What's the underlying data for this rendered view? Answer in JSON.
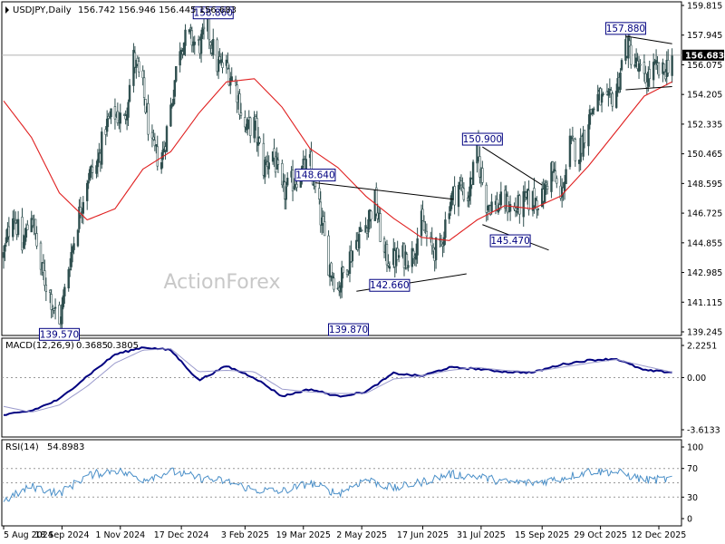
{
  "chart_data": [
    {
      "type": "candlestick",
      "header": {
        "symbol": "USDJPY,Daily",
        "ohlc_text": "156.742 156.946 156.445 156.683"
      },
      "watermark": "ActionForex",
      "current_price": 156.683,
      "ylim": [
        139.245,
        159.815
      ],
      "y_ticks": [
        159.815,
        157.945,
        156.075,
        154.205,
        152.335,
        150.465,
        148.595,
        146.725,
        144.855,
        142.985,
        141.115,
        139.245
      ],
      "x_ticks": [
        "5 Aug 2024",
        "18 Sep 2024",
        "1 Nov 2024",
        "17 Dec 2024",
        "3 Feb 2025",
        "19 Mar 2025",
        "2 May 2025",
        "17 Jun 2025",
        "31 Jul 2025",
        "15 Sep 2025",
        "29 Oct 2025",
        "12 Dec 2025"
      ],
      "price_path": [
        [
          "5 Aug 2024",
          144.0
        ],
        [
          "12 Aug 2024",
          147.0
        ],
        [
          "19 Aug 2024",
          144.5
        ],
        [
          "26 Aug 2024",
          146.8
        ],
        [
          "2 Sep 2024",
          143.2
        ],
        [
          "9 Sep 2024",
          141.6
        ],
        [
          "16 Sep 2024",
          139.6
        ],
        [
          "23 Sep 2024",
          143.4
        ],
        [
          "30 Sep 2024",
          146.3
        ],
        [
          "7 Oct 2024",
          149.0
        ],
        [
          "14 Oct 2024",
          149.6
        ],
        [
          "21 Oct 2024",
          152.2
        ],
        [
          "28 Oct 2024",
          153.0
        ],
        [
          "4 Nov 2024",
          152.5
        ],
        [
          "11 Nov 2024",
          156.5
        ],
        [
          "18 Nov 2024",
          154.5
        ],
        [
          "25 Nov 2024",
          150.7
        ],
        [
          "2 Dec 2024",
          150.0
        ],
        [
          "9 Dec 2024",
          153.4
        ],
        [
          "16 Dec 2024",
          157.4
        ],
        [
          "23 Dec 2024",
          157.8
        ],
        [
          "30 Dec 2024",
          157.2
        ],
        [
          "6 Jan 2025",
          158.3
        ],
        [
          "13 Jan 2025",
          156.1
        ],
        [
          "20 Jan 2025",
          155.9
        ],
        [
          "27 Jan 2025",
          154.8
        ],
        [
          "3 Feb 2025",
          152.0
        ],
        [
          "10 Feb 2025",
          152.3
        ],
        [
          "17 Feb 2025",
          149.6
        ],
        [
          "24 Feb 2025",
          150.6
        ],
        [
          "3 Mar 2025",
          147.9
        ],
        [
          "10 Mar 2025",
          148.6
        ],
        [
          "17 Mar 2025",
          149.3
        ],
        [
          "24 Mar 2025",
          149.8
        ],
        [
          "31 Mar 2025",
          146.9
        ],
        [
          "7 Apr 2025",
          143.6
        ],
        [
          "14 Apr 2025",
          142.0
        ],
        [
          "21 Apr 2025",
          143.6
        ],
        [
          "28 Apr 2025",
          145.0
        ],
        [
          "5 May 2025",
          146.0
        ],
        [
          "12 May 2025",
          147.5
        ],
        [
          "19 May 2025",
          144.0
        ],
        [
          "26 May 2025",
          143.8
        ],
        [
          "2 Jun 2025",
          144.0
        ],
        [
          "9 Jun 2025",
          144.1
        ],
        [
          "16 Jun 2025",
          146.1
        ],
        [
          "23 Jun 2025",
          144.5
        ],
        [
          "30 Jun 2025",
          144.4
        ],
        [
          "7 Jul 2025",
          147.4
        ],
        [
          "14 Jul 2025",
          148.5
        ],
        [
          "21 Jul 2025",
          147.7
        ],
        [
          "28 Jul 2025",
          150.5
        ],
        [
          "4 Aug 2025",
          147.4
        ],
        [
          "11 Aug 2025",
          147.2
        ],
        [
          "18 Aug 2025",
          147.4
        ],
        [
          "25 Aug 2025",
          146.9
        ],
        [
          "1 Sep 2025",
          147.4
        ],
        [
          "8 Sep 2025",
          147.6
        ],
        [
          "15 Sep 2025",
          147.6
        ],
        [
          "22 Sep 2025",
          149.6
        ],
        [
          "29 Sep 2025",
          147.5
        ],
        [
          "6 Oct 2025",
          151.0
        ],
        [
          "13 Oct 2025",
          150.6
        ],
        [
          "20 Oct 2025",
          152.8
        ],
        [
          "27 Oct 2025",
          154.0
        ],
        [
          "3 Nov 2025",
          153.5
        ],
        [
          "10 Nov 2025",
          154.5
        ],
        [
          "17 Nov 2025",
          157.4
        ],
        [
          "24 Nov 2025",
          156.2
        ],
        [
          "1 Dec 2025",
          155.0
        ],
        [
          "8 Dec 2025",
          155.8
        ],
        [
          "15 Dec 2025",
          155.5
        ],
        [
          "22 Dec 2025",
          156.7
        ]
      ],
      "moving_average_path": [
        [
          "5 Aug 2024",
          153.8
        ],
        [
          "26 Aug 2024",
          151.5
        ],
        [
          "16 Sep 2024",
          148.0
        ],
        [
          "7 Oct 2024",
          146.3
        ],
        [
          "28 Oct 2024",
          147.0
        ],
        [
          "18 Nov 2024",
          149.5
        ],
        [
          "9 Dec 2024",
          150.6
        ],
        [
          "30 Dec 2024",
          153.0
        ],
        [
          "20 Jan 2025",
          155.0
        ],
        [
          "10 Feb 2025",
          155.2
        ],
        [
          "3 Mar 2025",
          153.4
        ],
        [
          "24 Mar 2025",
          150.8
        ],
        [
          "14 Apr 2025",
          149.6
        ],
        [
          "5 May 2025",
          147.8
        ],
        [
          "26 May 2025",
          146.4
        ],
        [
          "16 Jun 2025",
          145.2
        ],
        [
          "7 Jul 2025",
          145.0
        ],
        [
          "28 Jul 2025",
          146.3
        ],
        [
          "18 Aug 2025",
          147.2
        ],
        [
          "8 Sep 2025",
          147.0
        ],
        [
          "29 Sep 2025",
          147.8
        ],
        [
          "20 Oct 2025",
          149.7
        ],
        [
          "10 Nov 2025",
          151.9
        ],
        [
          "1 Dec 2025",
          154.1
        ],
        [
          "22 Dec 2025",
          155.0
        ]
      ],
      "swing_labels": [
        {
          "text": "139.570",
          "date": "16 Sep 2024",
          "value": 139.57,
          "place": "below"
        },
        {
          "text": "158.860",
          "date": "10 Jan 2025",
          "value": 158.86,
          "place": "above"
        },
        {
          "text": "139.870",
          "date": "22 Apr 2025",
          "value": 139.87,
          "place": "below"
        },
        {
          "text": "148.640",
          "date": "28 Mar 2025",
          "value": 148.64,
          "place": "above"
        },
        {
          "text": "142.660",
          "date": "23 May 2025",
          "value": 142.66,
          "place": "below"
        },
        {
          "text": "150.900",
          "date": "1 Aug 2025",
          "value": 150.9,
          "place": "above"
        },
        {
          "text": "145.470",
          "date": "22 Aug 2025",
          "value": 145.47,
          "place": "below"
        },
        {
          "text": "157.880",
          "date": "17 Nov 2025",
          "value": 157.88,
          "place": "above"
        }
      ],
      "trendlines": [
        [
          [
            "28 Mar 2025",
            148.64
          ],
          [
            "10 Jul 2025",
            147.6
          ]
        ],
        [
          [
            "28 Apr 2025",
            141.8
          ],
          [
            "20 Jul 2025",
            142.9
          ]
        ],
        [
          [
            "1 Aug 2025",
            150.9
          ],
          [
            "15 Sep 2025",
            148.5
          ]
        ],
        [
          [
            "1 Aug 2025",
            146.0
          ],
          [
            "20 Sep 2025",
            144.4
          ]
        ],
        [
          [
            "17 Nov 2025",
            157.88
          ],
          [
            "22 Dec 2025",
            157.4
          ]
        ],
        [
          [
            "17 Nov 2025",
            154.5
          ],
          [
            "22 Dec 2025",
            154.7
          ]
        ]
      ]
    },
    {
      "type": "line",
      "header": {
        "label": "MACD(12,26,9)",
        "value1": "0.3685",
        "value2": "0.3805"
      },
      "ylim": [
        -3.6133,
        2.2251
      ],
      "y_ticks": [
        2.2251,
        0.0,
        -3.6133
      ],
      "series": [
        {
          "color": "#000080",
          "path": [
            [
              "5 Aug 2024",
              -2.6
            ],
            [
              "26 Aug 2024",
              -2.3
            ],
            [
              "16 Sep 2024",
              -1.5
            ],
            [
              "7 Oct 2024",
              0.1
            ],
            [
              "28 Oct 2024",
              1.6
            ],
            [
              "18 Nov 2024",
              2.1
            ],
            [
              "9 Dec 2024",
              1.9
            ],
            [
              "30 Dec 2024",
              -0.2
            ],
            [
              "20 Jan 2025",
              0.8
            ],
            [
              "10 Feb 2025",
              0.0
            ],
            [
              "3 Mar 2025",
              -1.3
            ],
            [
              "24 Mar 2025",
              -0.8
            ],
            [
              "14 Apr 2025",
              -1.3
            ],
            [
              "5 May 2025",
              -1.0
            ],
            [
              "26 May 2025",
              0.3
            ],
            [
              "16 Jun 2025",
              0.1
            ],
            [
              "7 Jul 2025",
              0.7
            ],
            [
              "28 Jul 2025",
              0.6
            ],
            [
              "18 Aug 2025",
              0.4
            ],
            [
              "8 Sep 2025",
              0.35
            ],
            [
              "29 Sep 2025",
              0.9
            ],
            [
              "20 Oct 2025",
              1.2
            ],
            [
              "10 Nov 2025",
              1.3
            ],
            [
              "1 Dec 2025",
              0.5
            ],
            [
              "22 Dec 2025",
              0.37
            ]
          ]
        },
        {
          "color": "#9a9acc",
          "path": [
            [
              "5 Aug 2024",
              -2.0
            ],
            [
              "26 Aug 2024",
              -2.4
            ],
            [
              "16 Sep 2024",
              -1.9
            ],
            [
              "7 Oct 2024",
              -0.6
            ],
            [
              "28 Oct 2024",
              1.0
            ],
            [
              "18 Nov 2024",
              1.9
            ],
            [
              "9 Dec 2024",
              2.0
            ],
            [
              "30 Dec 2024",
              0.4
            ],
            [
              "20 Jan 2025",
              0.5
            ],
            [
              "10 Feb 2025",
              0.4
            ],
            [
              "3 Mar 2025",
              -0.8
            ],
            [
              "24 Mar 2025",
              -1.0
            ],
            [
              "14 Apr 2025",
              -1.1
            ],
            [
              "5 May 2025",
              -1.1
            ],
            [
              "26 May 2025",
              -0.1
            ],
            [
              "16 Jun 2025",
              0.1
            ],
            [
              "7 Jul 2025",
              0.5
            ],
            [
              "28 Jul 2025",
              0.7
            ],
            [
              "18 Aug 2025",
              0.5
            ],
            [
              "8 Sep 2025",
              0.4
            ],
            [
              "29 Sep 2025",
              0.7
            ],
            [
              "20 Oct 2025",
              1.0
            ],
            [
              "10 Nov 2025",
              1.25
            ],
            [
              "1 Dec 2025",
              0.8
            ],
            [
              "22 Dec 2025",
              0.38
            ]
          ]
        }
      ]
    },
    {
      "type": "line",
      "header": {
        "label": "RSI(14)",
        "value": "54.8983"
      },
      "ylim": [
        0,
        100
      ],
      "y_ticks": [
        100,
        70,
        30,
        0
      ],
      "levels": [
        70,
        50,
        30
      ],
      "series": [
        {
          "color": "#4a8fc8",
          "path": [
            [
              "5 Aug 2024",
              25
            ],
            [
              "26 Aug 2024",
              45
            ],
            [
              "16 Sep 2024",
              35
            ],
            [
              "7 Oct 2024",
              60
            ],
            [
              "28 Oct 2024",
              68
            ],
            [
              "18 Nov 2024",
              55
            ],
            [
              "9 Dec 2024",
              66
            ],
            [
              "30 Dec 2024",
              57
            ],
            [
              "20 Jan 2025",
              52
            ],
            [
              "10 Feb 2025",
              40
            ],
            [
              "3 Mar 2025",
              38
            ],
            [
              "24 Mar 2025",
              50
            ],
            [
              "14 Apr 2025",
              35
            ],
            [
              "5 May 2025",
              55
            ],
            [
              "26 May 2025",
              42
            ],
            [
              "16 Jun 2025",
              51
            ],
            [
              "7 Jul 2025",
              62
            ],
            [
              "28 Jul 2025",
              59
            ],
            [
              "18 Aug 2025",
              51
            ],
            [
              "8 Sep 2025",
              50
            ],
            [
              "29 Sep 2025",
              56
            ],
            [
              "20 Oct 2025",
              66
            ],
            [
              "10 Nov 2025",
              65
            ],
            [
              "1 Dec 2025",
              54
            ],
            [
              "22 Dec 2025",
              55
            ]
          ]
        }
      ]
    }
  ]
}
